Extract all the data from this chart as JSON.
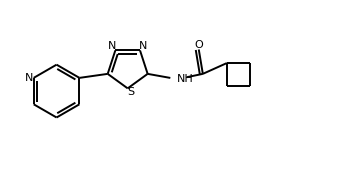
{
  "background_color": "#ffffff",
  "line_color": "#000000",
  "lw": 1.4,
  "figsize": [
    3.4,
    1.72
  ],
  "dpi": 100,
  "xlim": [
    0,
    10
  ],
  "ylim": [
    0,
    5
  ],
  "font_size": 8.0
}
